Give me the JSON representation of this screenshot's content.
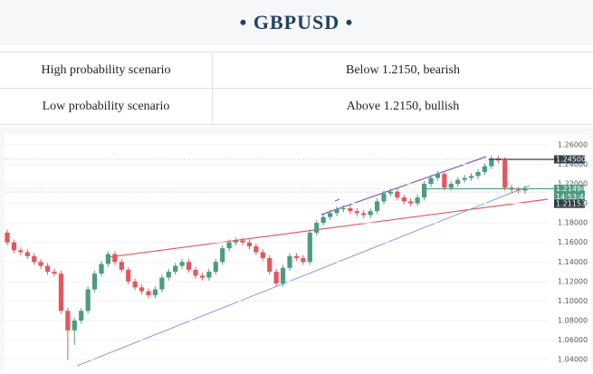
{
  "header": {
    "title": "GBPUSD"
  },
  "table": {
    "rows": [
      [
        "High probability scenario",
        "Below  1.2150,  bearish"
      ],
      [
        "Low probability scenario",
        "Above  1.2150,  bullish"
      ]
    ]
  },
  "chart_data": {
    "type": "candlestick",
    "up_color": "#4d9b80",
    "down_color": "#e5565d",
    "open": [
      1.17,
      1.16,
      1.152,
      1.15,
      1.146,
      1.14,
      1.136,
      1.13,
      1.128,
      1.09,
      1.07,
      1.08,
      1.09,
      1.112,
      1.128,
      1.138,
      1.148,
      1.14,
      1.132,
      1.12,
      1.114,
      1.11,
      1.106,
      1.112,
      1.124,
      1.13,
      1.136,
      1.14,
      1.132,
      1.126,
      1.124,
      1.13,
      1.14,
      1.154,
      1.16,
      1.162,
      1.16,
      1.156,
      1.15,
      1.144,
      1.13,
      1.118,
      1.134,
      1.146,
      1.144,
      1.14,
      1.17,
      1.18,
      1.186,
      1.19,
      1.194,
      1.195,
      1.192,
      1.19,
      1.188,
      1.192,
      1.202,
      1.21,
      1.212,
      1.206,
      1.202,
      1.2,
      1.206,
      1.22,
      1.226,
      1.23,
      1.216,
      1.22,
      1.224,
      1.226,
      1.228,
      1.232,
      1.238,
      1.246,
      1.244,
      1.216,
      1.214,
      1.213
    ],
    "high": [
      1.173,
      1.163,
      1.155,
      1.153,
      1.149,
      1.143,
      1.139,
      1.133,
      1.131,
      1.093,
      1.083,
      1.093,
      1.115,
      1.131,
      1.141,
      1.151,
      1.151,
      1.143,
      1.135,
      1.123,
      1.117,
      1.113,
      1.115,
      1.127,
      1.133,
      1.139,
      1.143,
      1.143,
      1.135,
      1.129,
      1.133,
      1.143,
      1.157,
      1.163,
      1.165,
      1.165,
      1.163,
      1.159,
      1.153,
      1.147,
      1.133,
      1.137,
      1.149,
      1.149,
      1.147,
      1.173,
      1.183,
      1.189,
      1.193,
      1.197,
      1.198,
      1.198,
      1.195,
      1.193,
      1.195,
      1.205,
      1.213,
      1.215,
      1.215,
      1.209,
      1.205,
      1.209,
      1.223,
      1.229,
      1.233,
      1.233,
      1.223,
      1.227,
      1.229,
      1.231,
      1.235,
      1.241,
      1.249,
      1.249,
      1.247,
      1.219,
      1.217,
      1.218
    ],
    "low": [
      1.157,
      1.149,
      1.147,
      1.143,
      1.137,
      1.133,
      1.127,
      1.125,
      1.087,
      1.04,
      1.055,
      1.077,
      1.087,
      1.109,
      1.125,
      1.135,
      1.137,
      1.129,
      1.117,
      1.111,
      1.107,
      1.103,
      1.103,
      1.109,
      1.121,
      1.127,
      1.133,
      1.129,
      1.123,
      1.121,
      1.121,
      1.127,
      1.137,
      1.151,
      1.157,
      1.157,
      1.153,
      1.147,
      1.141,
      1.127,
      1.115,
      1.115,
      1.131,
      1.141,
      1.137,
      1.137,
      1.167,
      1.177,
      1.183,
      1.187,
      1.191,
      1.189,
      1.187,
      1.185,
      1.185,
      1.189,
      1.199,
      1.207,
      1.203,
      1.199,
      1.197,
      1.197,
      1.203,
      1.217,
      1.223,
      1.213,
      1.213,
      1.217,
      1.221,
      1.223,
      1.225,
      1.229,
      1.235,
      1.241,
      1.213,
      1.211,
      1.21,
      1.21
    ],
    "close": [
      1.16,
      1.152,
      1.15,
      1.146,
      1.14,
      1.136,
      1.13,
      1.128,
      1.09,
      1.07,
      1.08,
      1.09,
      1.112,
      1.128,
      1.138,
      1.148,
      1.14,
      1.132,
      1.12,
      1.114,
      1.11,
      1.106,
      1.112,
      1.124,
      1.13,
      1.136,
      1.14,
      1.132,
      1.126,
      1.124,
      1.13,
      1.14,
      1.154,
      1.16,
      1.162,
      1.16,
      1.156,
      1.15,
      1.144,
      1.13,
      1.118,
      1.134,
      1.146,
      1.144,
      1.14,
      1.17,
      1.18,
      1.186,
      1.19,
      1.194,
      1.195,
      1.192,
      1.19,
      1.188,
      1.192,
      1.202,
      1.21,
      1.212,
      1.206,
      1.202,
      1.2,
      1.206,
      1.22,
      1.226,
      1.23,
      1.216,
      1.22,
      1.224,
      1.226,
      1.228,
      1.232,
      1.238,
      1.246,
      1.244,
      1.216,
      1.214,
      1.213,
      1.215
    ],
    "ylim": [
      1.03,
      1.27
    ],
    "yticks": [
      {
        "value": 1.04,
        "label": "1.04000"
      },
      {
        "value": 1.06,
        "label": "1.06000"
      },
      {
        "value": 1.08,
        "label": "1.08000"
      },
      {
        "value": 1.1,
        "label": "1.10000"
      },
      {
        "value": 1.12,
        "label": "1.12000"
      },
      {
        "value": 1.14,
        "label": "1.14000"
      },
      {
        "value": 1.16,
        "label": "1.16000"
      },
      {
        "value": 1.18,
        "label": "1.18000"
      },
      {
        "value": 1.2,
        "label": "1.20000"
      },
      {
        "value": 1.22,
        "label": "1.22000"
      },
      {
        "value": 1.24,
        "label": "1.24000"
      },
      {
        "value": 1.26,
        "label": "1.26000"
      }
    ],
    "price_labels": [
      {
        "value": 1.245,
        "label": "1.24500",
        "color": "#2f3e46"
      },
      {
        "value": 1.21494,
        "label": "1.21494",
        "time": "14:53:44",
        "color": "#4d9b80"
      },
      {
        "value": 1.21153,
        "label": "1.21153",
        "color": "#2f3e46"
      }
    ]
  }
}
